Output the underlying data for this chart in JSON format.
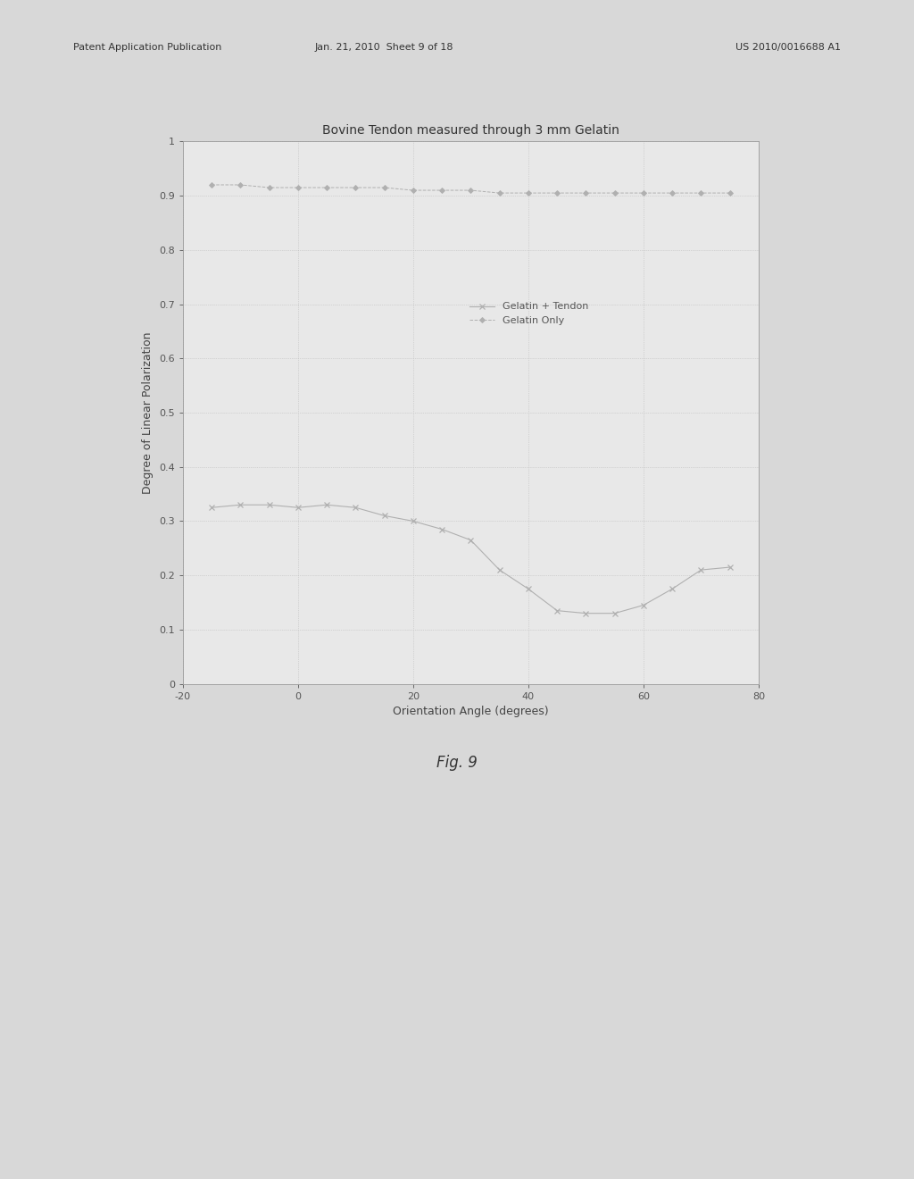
{
  "title": "Bovine Tendon measured through 3 mm Gelatin",
  "xlabel": "Orientation Angle (degrees)",
  "ylabel": "Degree of Linear Polarization",
  "xlim": [
    -20,
    80
  ],
  "ylim": [
    0,
    1
  ],
  "xticks": [
    -20,
    0,
    20,
    40,
    60,
    80
  ],
  "yticks": [
    0,
    0.1,
    0.2,
    0.3,
    0.4,
    0.5,
    0.6,
    0.7,
    0.8,
    0.9,
    1
  ],
  "ytick_labels": [
    "0",
    "0.1",
    "0.2",
    "0.3",
    "0.4",
    "0.5",
    "0.6",
    "0.7",
    "0.8",
    "0.9",
    "1"
  ],
  "gelatin_tendon_x": [
    -15,
    -10,
    -5,
    0,
    5,
    10,
    15,
    20,
    25,
    30,
    35,
    40,
    45,
    50,
    55,
    60,
    65,
    70,
    75
  ],
  "gelatin_tendon_y": [
    0.325,
    0.33,
    0.33,
    0.325,
    0.33,
    0.325,
    0.31,
    0.3,
    0.285,
    0.265,
    0.21,
    0.175,
    0.135,
    0.13,
    0.13,
    0.145,
    0.175,
    0.21,
    0.215
  ],
  "gelatin_only_x": [
    -15,
    -10,
    -5,
    0,
    5,
    10,
    15,
    20,
    25,
    30,
    35,
    40,
    45,
    50,
    55,
    60,
    65,
    70,
    75
  ],
  "gelatin_only_y": [
    0.92,
    0.92,
    0.915,
    0.915,
    0.915,
    0.915,
    0.915,
    0.91,
    0.91,
    0.91,
    0.905,
    0.905,
    0.905,
    0.905,
    0.905,
    0.905,
    0.905,
    0.905,
    0.905
  ],
  "line_color": "#b0b0b0",
  "plot_bg_color": "#e8e8e8",
  "fig_bg_color": "#d8d8d8",
  "header_left": "Patent Application Publication",
  "header_mid": "Jan. 21, 2010  Sheet 9 of 18",
  "header_right": "US 2010/0016688 A1",
  "fig_label": "Fig. 9",
  "title_fontsize": 10,
  "axis_fontsize": 9,
  "tick_fontsize": 8,
  "legend_fontsize": 8,
  "header_fontsize": 8
}
